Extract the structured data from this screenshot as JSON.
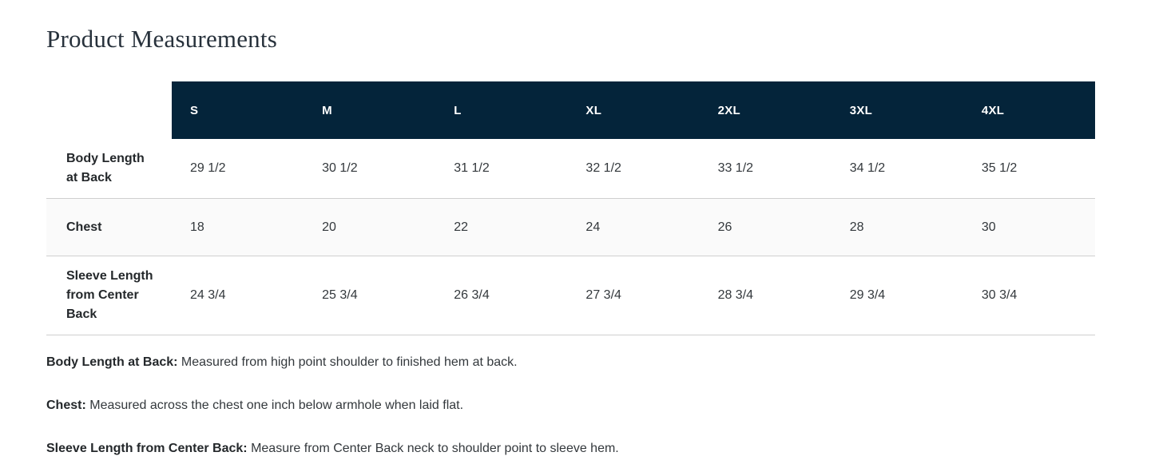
{
  "page": {
    "title": "Product Measurements"
  },
  "table": {
    "header": {
      "sizes": [
        "S",
        "M",
        "L",
        "XL",
        "2XL",
        "3XL",
        "4XL"
      ]
    },
    "rows": [
      {
        "label": "Body Length at Back",
        "values": [
          "29 1/2",
          "30 1/2",
          "31 1/2",
          "32 1/2",
          "33 1/2",
          "34 1/2",
          "35 1/2"
        ]
      },
      {
        "label": "Chest",
        "values": [
          "18",
          "20",
          "22",
          "24",
          "26",
          "28",
          "30"
        ]
      },
      {
        "label": "Sleeve Length from Center Back",
        "values": [
          "24 3/4",
          "25 3/4",
          "26 3/4",
          "27 3/4",
          "28 3/4",
          "29 3/4",
          "30 3/4"
        ]
      }
    ]
  },
  "footnotes": [
    {
      "term": "Body Length at Back:",
      "description": "Measured from high point shoulder to finished hem at back."
    },
    {
      "term": "Chest:",
      "description": "Measured across the chest one inch below armhole when laid flat."
    },
    {
      "term": "Sleeve Length from Center Back:",
      "description": "Measure from Center Back neck to shoulder point to sleeve hem."
    }
  ],
  "colors": {
    "header_bg": "#04243a",
    "header_text": "#ffffff",
    "alt_row_bg": "#fafafa",
    "divider": "#cfcfcf",
    "title_text": "#28323c",
    "body_text": "#33383c",
    "label_text": "#24282b"
  }
}
